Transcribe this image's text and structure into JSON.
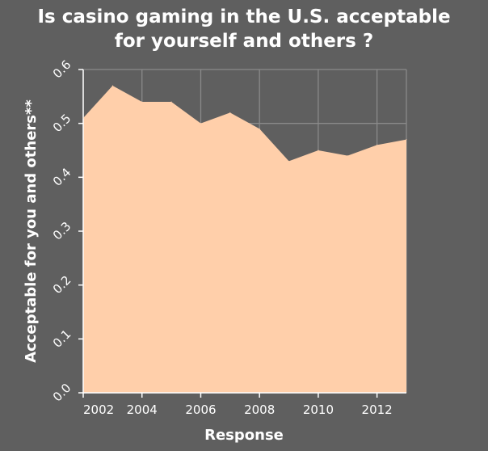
{
  "chart_data": {
    "type": "area",
    "title_lines": [
      "Is casino gaming in the U.S. acceptable",
      "for yourself and others ?"
    ],
    "xlabel": "Response",
    "ylabel": "Acceptable for you and others**",
    "x": [
      2002,
      2003,
      2004,
      2005,
      2006,
      2007,
      2008,
      2009,
      2010,
      2011,
      2012,
      2013
    ],
    "values": [
      0.51,
      0.57,
      0.54,
      0.54,
      0.5,
      0.52,
      0.49,
      0.43,
      0.45,
      0.44,
      0.46,
      0.47
    ],
    "xlim": [
      2002,
      2013
    ],
    "ylim": [
      0,
      0.6
    ],
    "x_ticks": [
      2002,
      2004,
      2006,
      2008,
      2010,
      2012
    ],
    "x_tick_labels": [
      "2002",
      "2004",
      "2006",
      "2008",
      "2010",
      "2012"
    ],
    "y_ticks": [
      0.0,
      0.1,
      0.2,
      0.3,
      0.4,
      0.5,
      0.6
    ],
    "y_tick_labels": [
      "0.0",
      "0.1",
      "0.2",
      "0.3",
      "0.4",
      "0.5",
      "0.6"
    ],
    "grid": true,
    "colors": {
      "fill": "#ffcfaa",
      "background": "#5f5f5f",
      "grid": "#8a8a8a",
      "text": "#ffffff"
    }
  }
}
